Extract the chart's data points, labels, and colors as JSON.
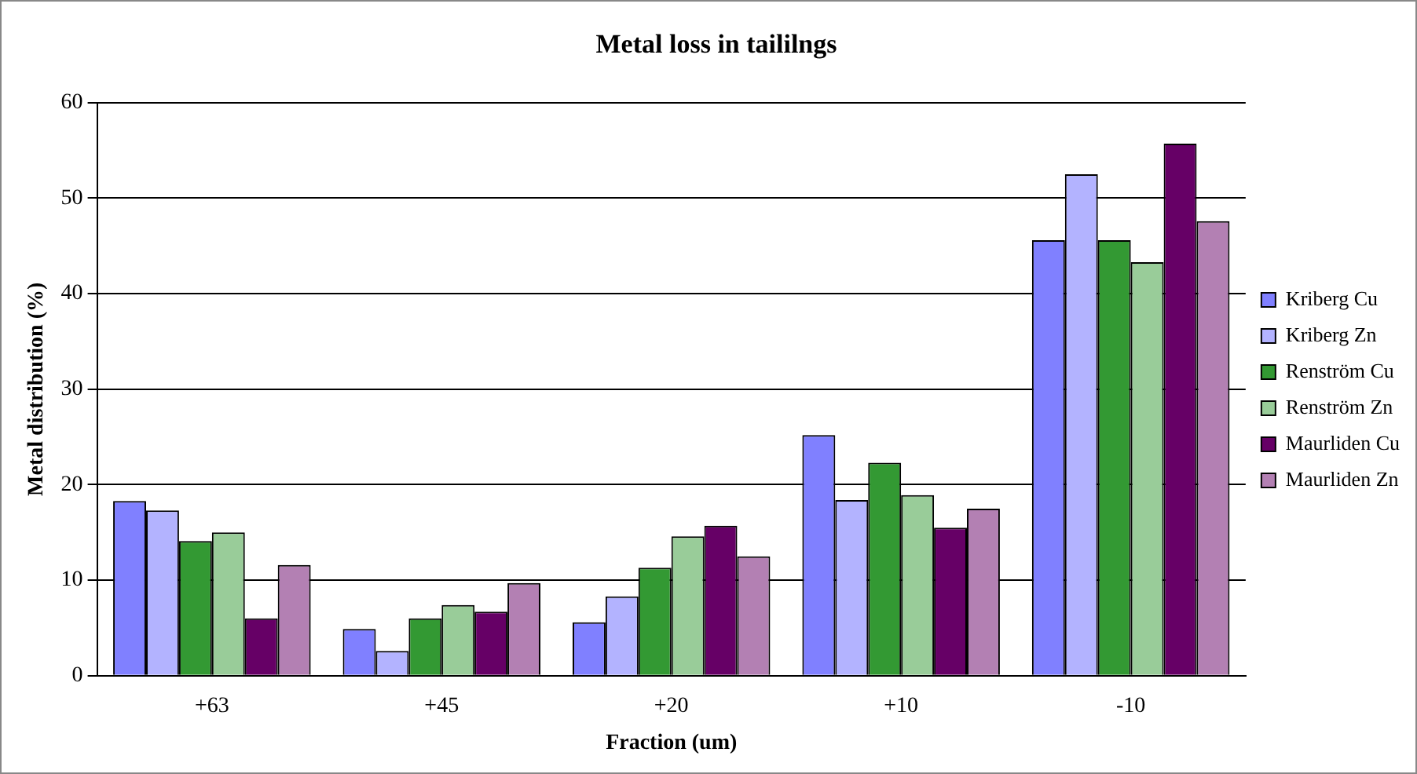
{
  "chart_data": {
    "type": "bar",
    "title": "Metal loss in taililngs",
    "xlabel": "Fraction (um)",
    "ylabel": "Metal distribution (%)",
    "categories": [
      "+63",
      "+45",
      "+20",
      "+10",
      "-10"
    ],
    "series": [
      {
        "name": "Kriberg Cu",
        "color": "#8080ff",
        "values": [
          18.3,
          4.9,
          5.6,
          25.2,
          45.6
        ]
      },
      {
        "name": "Kriberg Zn",
        "color": "#b3b3ff",
        "values": [
          17.3,
          2.6,
          8.3,
          18.4,
          52.5
        ]
      },
      {
        "name": "Renström Cu",
        "color": "#339933",
        "values": [
          14.1,
          6.0,
          11.3,
          22.3,
          45.6
        ]
      },
      {
        "name": "Renström Zn",
        "color": "#99cc99",
        "values": [
          15.0,
          7.4,
          14.6,
          18.9,
          43.3
        ]
      },
      {
        "name": "Maurliden Cu",
        "color": "#660066",
        "values": [
          6.0,
          6.7,
          15.7,
          15.5,
          55.7
        ]
      },
      {
        "name": "Maurliden Zn",
        "color": "#b380b3",
        "values": [
          11.6,
          9.7,
          12.5,
          17.5,
          47.6
        ]
      }
    ],
    "ylim": [
      0,
      60
    ],
    "yticks": [
      0,
      10,
      20,
      30,
      40,
      50,
      60
    ],
    "grid": "y",
    "legend": "right"
  }
}
